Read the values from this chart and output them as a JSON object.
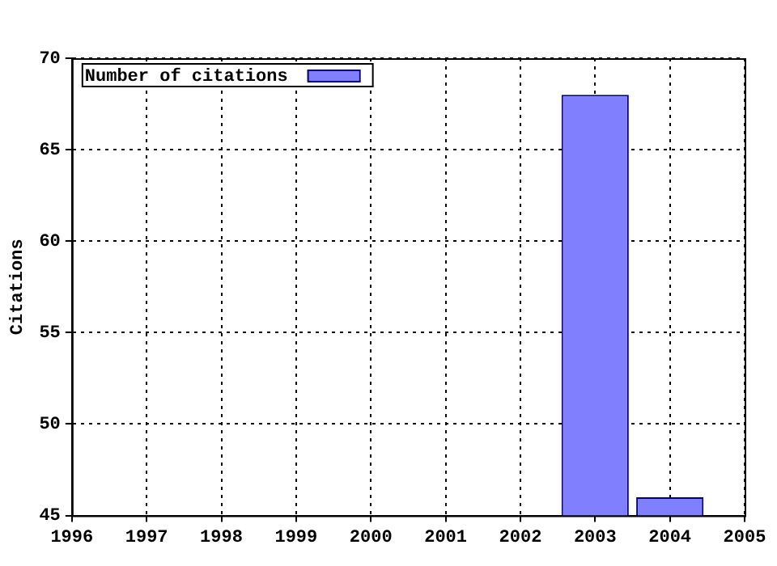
{
  "chart_data": {
    "type": "bar",
    "ylabel": "Citations",
    "x": [
      2003,
      2004
    ],
    "series": [
      {
        "name": "Number of citations",
        "color": "#8080ff",
        "values": [
          68,
          46
        ]
      }
    ],
    "xlim": [
      1996,
      2005
    ],
    "xticks": [
      1996,
      1997,
      1998,
      1999,
      2000,
      2001,
      2002,
      2003,
      2004,
      2005
    ],
    "ylim": [
      45,
      70
    ],
    "yticks": [
      45,
      50,
      55,
      60,
      65,
      70
    ],
    "grid": true,
    "legend": "top left"
  }
}
